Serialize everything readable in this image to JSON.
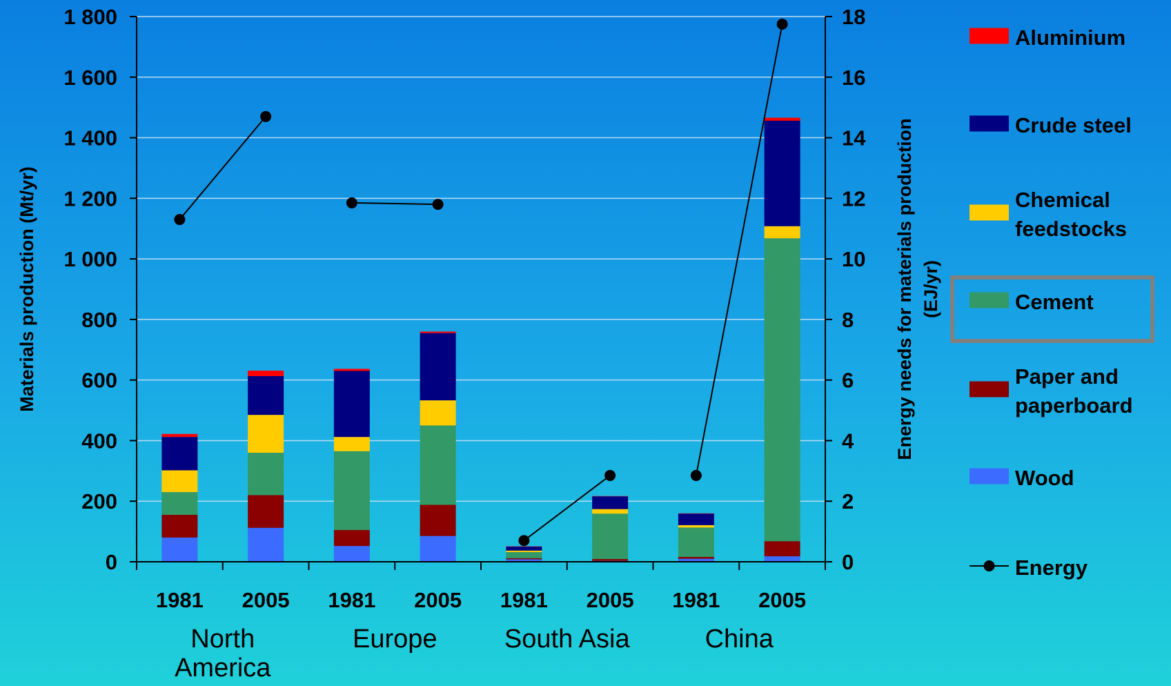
{
  "chart_data": {
    "type": "bar",
    "stacked": true,
    "x_labels": [
      "1981",
      "2005",
      "1981",
      "2005",
      "1981",
      "2005",
      "1981",
      "2005"
    ],
    "groups": [
      {
        "name_lines": [
          "North",
          "America"
        ],
        "bars": [
          0,
          1
        ]
      },
      {
        "name_lines": [
          "Europe"
        ],
        "bars": [
          2,
          3
        ]
      },
      {
        "name_lines": [
          "South Asia"
        ],
        "bars": [
          4,
          5
        ]
      },
      {
        "name_lines": [
          "China"
        ],
        "bars": [
          6,
          7
        ]
      }
    ],
    "ylabel": "Materials production (Mt/yr)",
    "ylim": [
      0,
      1800
    ],
    "yticks": [
      0,
      200,
      400,
      600,
      800,
      1000,
      1200,
      1400,
      1600,
      1800
    ],
    "ytick_labels": [
      "0",
      "200",
      "400",
      "600",
      "800",
      "1 000",
      "1 200",
      "1 400",
      "1 600",
      "1 800"
    ],
    "y2label_lines": [
      "Energy needs for materials production",
      "(EJ/yr)"
    ],
    "y2lim": [
      0,
      18
    ],
    "y2ticks": [
      0,
      2,
      4,
      6,
      8,
      10,
      12,
      14,
      16,
      18
    ],
    "grid": true,
    "legend_position": "right",
    "series": [
      {
        "name": "Wood",
        "color": "#3b6cff",
        "values": [
          80,
          112,
          52,
          85,
          8,
          3,
          10,
          18
        ]
      },
      {
        "name": "Paper and paperboard",
        "color": "#8b0000",
        "values": [
          75,
          108,
          53,
          103,
          4,
          6,
          6,
          50
        ]
      },
      {
        "name": "Cement",
        "color": "#339966",
        "values": [
          75,
          140,
          260,
          262,
          20,
          150,
          97,
          1000
        ]
      },
      {
        "name": "Chemical feedstocks",
        "color": "#ffcc00",
        "values": [
          72,
          125,
          47,
          83,
          5,
          15,
          8,
          40
        ]
      },
      {
        "name": "Crude steel",
        "color": "#000080",
        "values": [
          110,
          128,
          218,
          222,
          13,
          42,
          38,
          348
        ]
      },
      {
        "name": "Aluminium",
        "color": "#ff0000",
        "values": [
          10,
          18,
          7,
          5,
          1,
          1,
          1,
          10
        ]
      }
    ],
    "energy": {
      "name": "Energy",
      "color": "#000000",
      "values": [
        11.3,
        14.7,
        11.85,
        11.8,
        0.7,
        2.85,
        2.85,
        17.75
      ],
      "connect_pairs": [
        [
          0,
          1
        ],
        [
          2,
          3
        ],
        [
          4,
          5
        ],
        [
          6,
          7
        ]
      ]
    },
    "legend": [
      {
        "label_lines": [
          "Aluminium"
        ],
        "kind": "box",
        "color": "#ff0000"
      },
      {
        "label_lines": [
          "Crude steel"
        ],
        "kind": "box",
        "color": "#000080"
      },
      {
        "label_lines": [
          "Chemical",
          "feedstocks"
        ],
        "kind": "box",
        "color": "#ffcc00"
      },
      {
        "label_lines": [
          "Cement"
        ],
        "kind": "box",
        "color": "#339966",
        "highlighted": true
      },
      {
        "label_lines": [
          "Paper and",
          "paperboard"
        ],
        "kind": "box",
        "color": "#8b0000"
      },
      {
        "label_lines": [
          "Wood"
        ],
        "kind": "box",
        "color": "#3b6cff"
      },
      {
        "label_lines": [
          "Energy"
        ],
        "kind": "line",
        "color": "#000000"
      }
    ]
  }
}
